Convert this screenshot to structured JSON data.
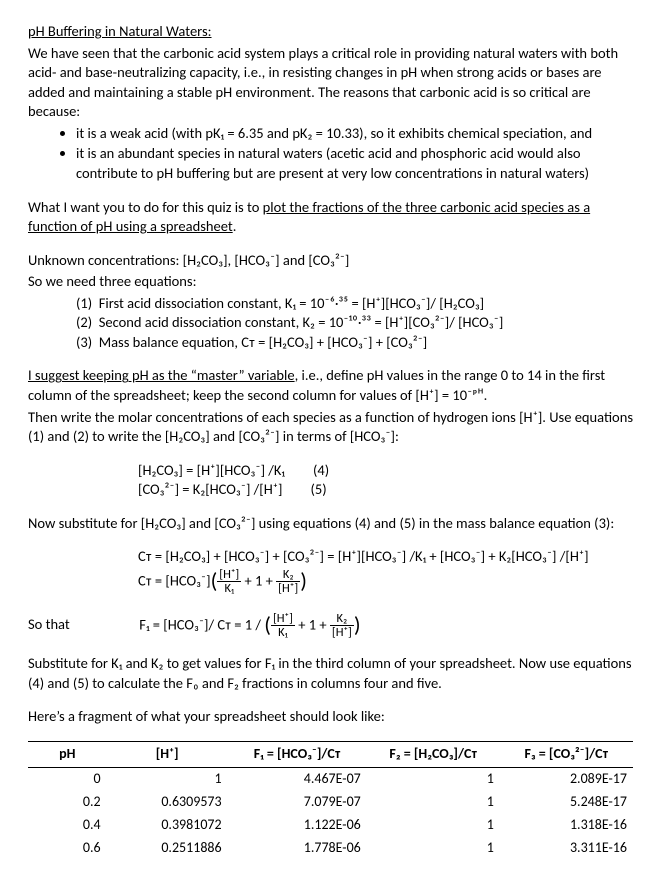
{
  "title": "pH Buffering in Natural Waters:",
  "intro1": "We have seen that the carbonic acid system plays a critical role in providing natural waters with both acid- and base-neutralizing capacity, i.e., in resisting changes in pH when strong acids or bases are added and maintaining a stable pH environment. The reasons that carbonic acid is so critical are because:",
  "bullets": [
    "it is a weak acid (with pK₁ = 6.35 and pK₂ = 10.33), so it exhibits chemical speciation, and",
    "it is an abundant species in natural waters (acetic acid and phosphoric acid would also contribute to pH buffering but are present at very low concentrations in natural waters)"
  ],
  "task_pre": "What I want you to do for this quiz is to ",
  "task_u": "plot the fractions of the three carbonic acid species as a function of pH using a spreadsheet",
  "task_post": ".",
  "unknowns": "Unknown concentrations: [H₂CO₃], [HCO₃⁻] and [CO₃²⁻]",
  "need_eq": "So we need three equations:",
  "eqs": [
    "First acid dissociation constant, K₁ = 10⁻⁶·³⁵ = [H⁺][HCO₃⁻]/ [H₂CO₃]",
    "Second acid dissociation constant, K₂ = 10⁻¹⁰·³³ = [H⁺][CO₃²⁻]/ [HCO₃⁻]",
    "Mass balance equation, Cᴛ = [H₂CO₃] + [HCO₃⁻] + [CO₃²⁻]"
  ],
  "master_u": "I suggest keeping pH as the “master” variable",
  "master_post": ", i.e., define pH values in the range 0 to 14 in the first column of the spreadsheet; keep the second column for values of [H⁺] = 10⁻ᵖᴴ.",
  "then": "Then write the molar concentrations of each species as a function of hydrogen ions [H⁺]. Use equations (1) and (2) to write the [H₂CO₃] and [CO₃²⁻] in terms of [HCO₃⁻]:",
  "eq4": "[H₂CO₃] = [H⁺][HCO₃⁻] /K₁",
  "eq4n": "(4)",
  "eq5": "[CO₃²⁻] = K₂[HCO₃⁻] /[H⁺]",
  "eq5n": "(5)",
  "sub": "Now substitute for [H₂CO₃] and [CO₃²⁻] using equations (4) and (5) in the mass balance equation (3):",
  "ct1": "Cᴛ = [H₂CO₃] + [HCO₃⁻] + [CO₃²⁻] = [H⁺][HCO₃⁻] /K₁ + [HCO₃⁻] + K₂[HCO₃⁻] /[H⁺]",
  "ct2a": "Cᴛ = [HCO₃⁻]",
  "sothat": "So that",
  "f1a": "F₁ = [HCO₃⁻]/ Cᴛ = 1 / ",
  "fr1n": "[H⁺]",
  "fr1d": "K₁",
  "plus1": " + 1 + ",
  "fr2n": "K₂",
  "fr2d": "[H⁺]",
  "sub2": "Substitute for K₁ and K₂ to get values for F₁ in the third column of your spreadsheet. Now use equations (4) and (5) to calculate the F₀ and F₂ fractions in columns four and five.",
  "frag": "Here’s a fragment of what your spreadsheet should look like:",
  "table": {
    "headers": [
      "pH",
      "[H⁺]",
      "F₁ = [HCO₃⁻]/Cᴛ",
      "F₂ = [H₂CO₃]/Cᴛ",
      "F₃ = [CO₃²⁻]/Cᴛ"
    ],
    "rows": [
      [
        "0",
        "1",
        "4.467E-07",
        "1",
        "2.089E-17"
      ],
      [
        "0.2",
        "0.6309573",
        "7.079E-07",
        "1",
        "5.248E-17"
      ],
      [
        "0.4",
        "0.3981072",
        "1.122E-06",
        "1",
        "1.318E-16"
      ],
      [
        "0.6",
        "0.2511886",
        "1.778E-06",
        "1",
        "3.311E-16"
      ]
    ]
  }
}
